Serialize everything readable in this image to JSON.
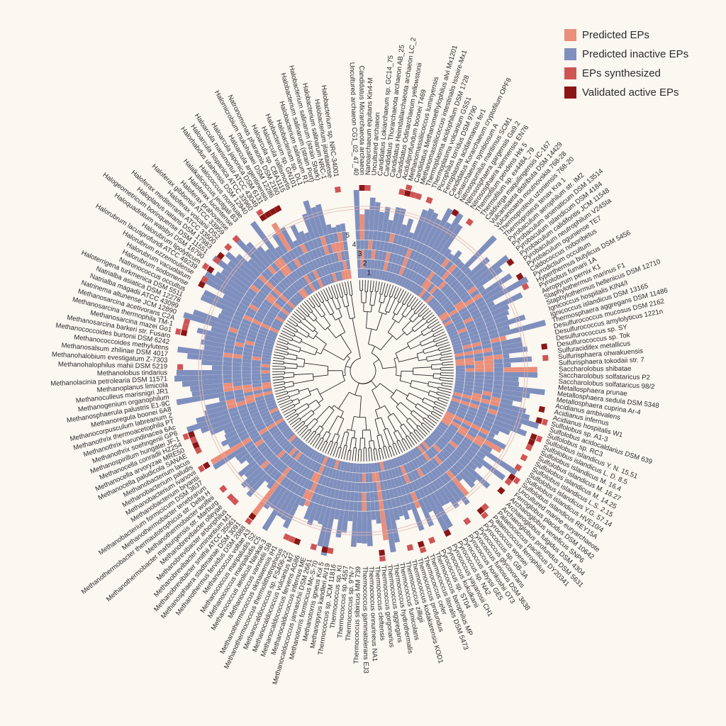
{
  "legend": [
    {
      "label": "Predicted EPs",
      "color": "#e98f7b"
    },
    {
      "label": "Predicted inactive EPs",
      "color": "#7f8fbd"
    },
    {
      "label": "EPs synthesized",
      "color": "#cf5555"
    },
    {
      "label": "Validated active EPs",
      "color": "#8a1616"
    }
  ],
  "ring_labels": [
    "5",
    "4",
    "3",
    "2",
    "1"
  ],
  "species": [
    "Uncultured archaeon CG1_02_47_40",
    "Candidatus Micrarchaeota archaeon",
    "Nanoarchaeum equitans Kin4-M",
    "Uncultured archaeon",
    "Candidatus Lokiarchaeum sp. GC14_75",
    "Candidatus Thorarchaeota archaeon AB_25",
    "Candidatus Heimdallarchaeota archaeon LC_2",
    "Candidatus Odinarchaeum yellowstonii",
    "Aciduliprofundum boonei T469",
    "Methanomassiliicoccus luminyensis",
    "Candidatus Methanomethylophilus alvi Mx1201",
    "Methanomassiliicoccus intestinalis Issoire-Mx1",
    "Thermoplasma acidophilum DSM 1728",
    "Thermoplasma volcanium GSS1",
    "Picrophilus torridus DSM 9790",
    "Ferroplasma acidarmanus fer1",
    "Candidatus Korarchaeum cryptofilum OPF8",
    "Cenarchaeum symbiosum A",
    "Nitrosopumilus maritimus SCM1",
    "Nitrososphaera gargensis Ga9.2",
    "Nitrososphaera viennensis EN76",
    "Thermofilum pendens Hrk 5",
    "Thermofilum sp. ex4484_79",
    "Caldivirga maquilingensis IC-167",
    "Vulcanisaeta distributa DSM 14429",
    "Vulcanisaeta moutnovskia 768-28",
    "Thermoproteus uzoniensis 768-20",
    "Thermoproteus tenax Kra 1",
    "Pyrobaculum aerophilum str. IM2",
    "Pyrobaculum arsenaticum DSM 13514",
    "Pyrobaculum islandicum DSM 4184",
    "Pyrobaculum calidifontis JCM 11548",
    "Pyrobaculum neutrophilum V24Sta",
    "Pyrobaculum oguniense TE7",
    "Caldococcus noboribetus",
    "Pyrodictium occultum",
    "Hyperthermus butylicus DSM 5456",
    "Pyrolobus fumarii 1A",
    "Aeropyrum pernix K1",
    "Staphylothermus marinus F1",
    "Staphylothermus hellenicus DSM 12710",
    "Ignicoccus hospitalis KIN4/I",
    "Ignicoccus islandicus DSM 13165",
    "Thermosphaera aggregans DSM 11486",
    "Desulfurococcus mucosus DSM 2162",
    "Desulfurococcus amylolyticus 1221n",
    "Desulfurococcus sp. SY",
    "Desulfurococcus sp. Tok",
    "Sulfuracidifex metallicus",
    "Sulfurisphaera ohwakuensis",
    "Sulfurisphaera tokodaii str. 7",
    "Saccharolobus shibatae",
    "Saccharolobus solfataricus P2",
    "Saccharolobus solfataricus 98/2",
    "Metallosphaera prunae",
    "Metallosphaera sedula DSM 5348",
    "Metallosphaera cuprina Ar-4",
    "Acidianus ambivalens",
    "Acidianus infernus",
    "Acidianus hospitalis W1",
    "Sulfolobus sp. A1-3",
    "Sulfolobus acidocaldarius DSM 639",
    "Sulfolobus sp. RC3",
    "Sulfolobus islandicus Y. N. 15.51",
    "Sulfolobus islandicus L. D. 8.5",
    "Sulfolobus islandicus M. 16.4",
    "Sulfolobus islandicus M. 16.27",
    "Sulfolobus islandicus M. 14.25",
    "Sulfolobus islandicus L.S. 2.15",
    "Sulfolobus islandicus Y.G. 57.14",
    "Sulfolobus islandicus HVE10/4",
    "Sulfolobus islandicus REY15A",
    "Uncultured marine euryarchaeote",
    "Ferroglobus placidus DSM 10642",
    "Archaeoglobus veneficus SNP6",
    "Archaeoglobus fulgidus DSM 4304",
    "Archaeoglobus profundus DSM 5631",
    "Palaeococcus pacificus DY20341",
    "Palaeococcus ferrophilus",
    "Pyrococcus woesei",
    "Pyrococcus sp. GB-3A",
    "Pyrococcus glycovorans",
    "Pyrococcus furiosus DSM 3638",
    "Pyrococcus horikoshii OT3",
    "Pyrococcus abyssi GE5",
    "Pyrococcus sp. NA2",
    "Pyrococcus yayanosii CH1",
    "Pyrococcus kukulkanii",
    "Pyrococcus sp. ST04",
    "Thermococcus barophilus MP",
    "Thermococcus litoralis DSM 5473",
    "Thermococcus celer",
    "Thermococcus profundus",
    "Thermococcus kodakarensis KOD1",
    "Thermococcus zilligii",
    "Thermococcus fumicolans",
    "Thermococcus hydrothermalis",
    "Thermococcus aggregans",
    "Thermococcus gorgonarius",
    "Thermococcus cleftensis",
    "Thermococcus onnurineus NA1",
    "Thermococcus gammatolerans EJ3",
    "Thermococcus sibiricus MM 739",
    "Thermococcus sp. 9°N-7",
    "Thermococcus sp. 4557",
    "Thermococcus sp. KI",
    "Thermococcus sp. JCM 11816",
    "Methanopyrus kandleri AV19",
    "Methanotorris igneus Kol 5",
    "Methanotorris formicicus Mc-S-70",
    "Methanocaldococcus jannaschii DSM 2661",
    "Methanocaldococcus infernus ME",
    "Methanocaldococcus fervens AG86",
    "Methanocaldococcus vulcanius M7",
    "Methanocaldococcus sp. FS406-22",
    "Methanothermococcus thermolithotrophicus",
    "Methanothermococcus okinawensis IH1",
    "Methanococcus vannielii SB",
    "Methanococcus aeolicus Nankai-3",
    "Methanococcus maripaludis C5",
    "Methanococcus maripaludis S2",
    "Methanococcus voltae A3",
    "Methanothermus fervidus DSM 2088",
    "Methanosphaera stadtmanae DSM 3091",
    "Methanobrevibacter smithii ATCC 35061",
    "Methanobrevibacter ruminantium M1",
    "Methanobrevibacter arboriphilus",
    "Methanobrevibacter olleyae",
    "Methanothermobacter marburgensis str. Marburg",
    "Methanothermobacter wolfeii",
    "Methanothermobacter thermautotrophicus str. Delta H",
    "Methanothermobacter tenebrarum",
    "Methanobacterium formicicum DSM 3637",
    "Methanobacterium bryantii",
    "Methanobacterium ivanovii",
    "Methanobacterium paludis",
    "Methanobacterium lacus",
    "Methanocella paludicola SANAE",
    "Methanocella arvoryzae MRE50",
    "Methanocella conradii HZ254",
    "Methanospirillum hungatei JF-1",
    "Methanothrix soehngenii GP6",
    "Methanothrix harundinacea 6Ac",
    "Methanothrix thermoacetophila PT",
    "Methanocorpusculum labreanum Z",
    "Methanoregula boonei 6A8",
    "Methanosphaerula palustris E1-9C",
    "Methanogenium organophilum",
    "Methanoculleus marisnigri JR1",
    "Methanoplanus limicola",
    "Methanolacinia petrolearia DSM 11571",
    "Methanolobus tindarius",
    "Methanohalophilus mahii DSM 5219",
    "Methanohalobium evestigatum Z-7303",
    "Methanosalsum zhilinae DSM 4017",
    "Methanococcoides methylutens",
    "Methanococcoides burtonii DSM 6242",
    "Methanosarcina barkeri str. Fusaro",
    "Methanosarcina mazei Go1",
    "Methanosarcina thermophila TM-1",
    "Methanosarcina acetivorans C2A",
    "Natrinema altunense JCM 12890",
    "Natrialba magadii ATCC 43099",
    "Natrialba asiatica DSM 12278",
    "Haloterrigena turkmenica DSM 5511",
    "Natronococcus occultus",
    "Halorubrum sodomense",
    "Halorubrum vacuolatum",
    "Halorubrum ezzemoulense",
    "Halorubrum lacusprofundi ATCC 49239",
    "Halorubrum lipolyticum",
    "Haloquadratum walsbyi DSM 16790",
    "Halogeometricum borinquense DSM 11551",
    "Haloplanus natans DSM 17983",
    "Haloferax mediterranei ATCC 33500",
    "Haloferax volcanii DS2",
    "Haloferax gibbonsii ATCC 33959",
    "Haloferax prahovense",
    "Haloferax lucentense",
    "Halalkalicoccus jeotgali B3",
    "Halococcus morrhuae",
    "Halorhabdus utahensis DSM 12940",
    "Haloarcula hispanica ATCC 33960",
    "Haloarcula marismortui ATCC 43049",
    "Haloarcula japonica DSM 6131",
    "Haloarcula argentinensis",
    "Halomicrobium mukohataei DSM 12286",
    "Natronomonas pharaonis DSM 2160",
    "Haloarcula sp. CBA1115",
    "Haloarcula vallismortis",
    "Halobacterium sp. GN101",
    "Halobacterium sp. DL1",
    "Halobacterium salinarum R1",
    "Halobacterium salinarum (strain Port)",
    "Halobacterium salinarum (strain Shark)",
    "Halobacterium salinarum NRC-1",
    "Halobacterium jilantaiense",
    "Halobacterium sp. NRC-34001"
  ]
}
